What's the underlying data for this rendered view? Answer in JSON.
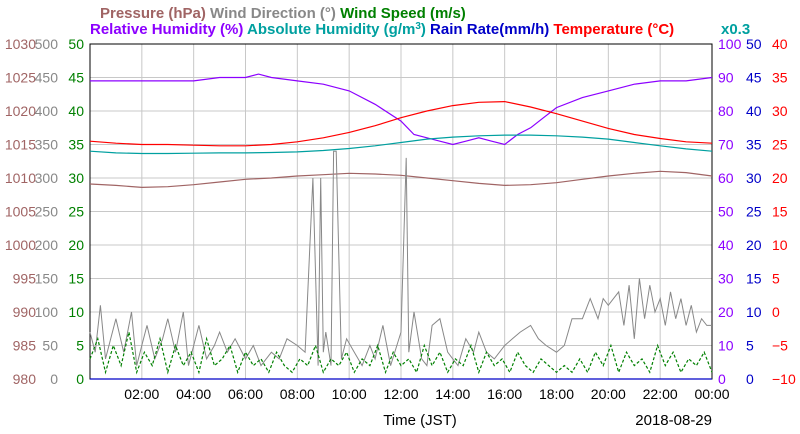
{
  "chart_data": {
    "type": "line",
    "xlabel": "Time (JST)",
    "date": "2018-08-29",
    "x_ticks": [
      "02:00",
      "04:00",
      "06:00",
      "08:00",
      "10:00",
      "12:00",
      "14:00",
      "16:00",
      "18:00",
      "20:00",
      "22:00",
      "00:00"
    ],
    "x_range_hours": [
      0,
      24
    ],
    "grid": true,
    "legend_row1": [
      {
        "label": "Pressure (hPa)",
        "color": "#a06464"
      },
      {
        "label": "Wind Direction (°)",
        "color": "#888888"
      },
      {
        "label": "Wind Speed (m/s)",
        "color": "#008000"
      }
    ],
    "legend_row2": [
      {
        "label": "Relative Humidity (%)",
        "color": "#8c00ff"
      },
      {
        "label": "Absolute Humidity (g/m",
        "sup": "3",
        "close": ")",
        "color": "#00a0a0"
      },
      {
        "label": "Rain Rate(mm/h)",
        "color": "#0000c8"
      },
      {
        "label": "Temperature (°C)",
        "color": "#ff0000"
      }
    ],
    "abs_humidity_scale_note": "x0.3",
    "axes": {
      "pressure": {
        "color": "#a06464",
        "range": [
          980,
          1030
        ],
        "ticks": [
          "1030",
          "1025",
          "1020",
          "1015",
          "1010",
          "1005",
          "1000",
          "995",
          "990",
          "985",
          "980"
        ]
      },
      "wind_dir": {
        "color": "#888888",
        "range": [
          0,
          500
        ],
        "ticks": [
          "500",
          "450",
          "400",
          "350",
          "300",
          "250",
          "200",
          "150",
          "100",
          "50",
          "0"
        ]
      },
      "wind_speed": {
        "color": "#008000",
        "range": [
          0,
          50
        ],
        "ticks": [
          "50",
          "45",
          "40",
          "35",
          "30",
          "25",
          "20",
          "15",
          "10",
          "5",
          "0"
        ]
      },
      "rel_hum": {
        "color": "#8c00ff",
        "range": [
          0,
          100
        ],
        "ticks": [
          "100",
          "90",
          "80",
          "70",
          "60",
          "50",
          "40",
          "30",
          "20",
          "10",
          "0"
        ]
      },
      "rain": {
        "color": "#0000c8",
        "range": [
          0,
          50
        ],
        "ticks": [
          "50",
          "45",
          "40",
          "35",
          "30",
          "25",
          "20",
          "15",
          "10",
          "5",
          "0"
        ]
      },
      "temp": {
        "color": "#ff0000",
        "range": [
          -10,
          40
        ],
        "ticks": [
          "40",
          "35",
          "30",
          "25",
          "20",
          "15",
          "10",
          "5",
          "0",
          "−5",
          "−10"
        ]
      }
    },
    "series": [
      {
        "name": "Pressure (hPa)",
        "axis": "pressure",
        "color": "#a06464",
        "x": [
          0,
          1,
          2,
          3,
          4,
          5,
          6,
          7,
          8,
          9,
          10,
          11,
          12,
          13,
          14,
          15,
          16,
          17,
          18,
          19,
          20,
          21,
          22,
          23,
          24
        ],
        "values": [
          1009.1,
          1008.9,
          1008.6,
          1008.7,
          1009.0,
          1009.4,
          1009.8,
          1010.0,
          1010.3,
          1010.5,
          1010.7,
          1010.6,
          1010.4,
          1010.0,
          1009.6,
          1009.2,
          1008.9,
          1009.0,
          1009.3,
          1009.8,
          1010.3,
          1010.7,
          1011.0,
          1010.8,
          1010.3
        ]
      },
      {
        "name": "Wind Direction (°)",
        "axis": "wind_dir",
        "color": "#888888",
        "style": "spiky",
        "x": [
          0,
          0.2,
          0.4,
          0.6,
          0.8,
          1,
          1.3,
          1.6,
          1.8,
          2,
          2.2,
          2.5,
          2.8,
          3,
          3.3,
          3.6,
          3.8,
          4,
          4.2,
          4.5,
          4.8,
          5,
          5.3,
          5.6,
          6,
          6.3,
          6.6,
          7,
          7.3,
          7.6,
          8,
          8.3,
          8.6,
          8.8,
          8.9,
          9,
          9.1,
          9.3,
          9.4,
          9.5,
          9.7,
          9.9,
          10.2,
          10.5,
          10.8,
          11,
          11.3,
          11.6,
          12,
          12.2,
          12.3,
          12.5,
          12.8,
          13,
          13.2,
          13.5,
          13.8,
          14,
          14.2,
          14.5,
          14.8,
          15,
          15.3,
          15.6,
          16,
          16.3,
          16.6,
          17,
          17.3,
          17.6,
          18,
          18.3,
          18.6,
          19,
          19.3,
          19.6,
          19.8,
          20,
          20.2,
          20.4,
          20.6,
          20.8,
          21,
          21.2,
          21.4,
          21.6,
          21.8,
          22,
          22.2,
          22.4,
          22.6,
          22.8,
          23,
          23.2,
          23.4,
          23.6,
          23.8,
          24
        ],
        "values": [
          70,
          40,
          110,
          30,
          60,
          90,
          40,
          100,
          20,
          50,
          80,
          30,
          60,
          90,
          40,
          100,
          20,
          50,
          80,
          30,
          50,
          70,
          40,
          60,
          30,
          50,
          20,
          40,
          30,
          60,
          50,
          40,
          300,
          20,
          300,
          40,
          70,
          20,
          340,
          340,
          30,
          60,
          40,
          20,
          50,
          30,
          80,
          20,
          70,
          330,
          40,
          100,
          30,
          20,
          80,
          90,
          40,
          30,
          20,
          60,
          40,
          70,
          40,
          30,
          50,
          60,
          70,
          80,
          60,
          50,
          40,
          50,
          90,
          90,
          120,
          90,
          120,
          110,
          120,
          130,
          80,
          140,
          60,
          150,
          90,
          140,
          100,
          120,
          80,
          130,
          90,
          120,
          80,
          110,
          70,
          90,
          80,
          80
        ]
      },
      {
        "name": "Wind Speed (m/s)",
        "axis": "wind_speed",
        "color": "#008000",
        "style": "dashed",
        "x": [
          0,
          0.3,
          0.6,
          0.9,
          1.2,
          1.5,
          1.8,
          2.1,
          2.4,
          2.7,
          3,
          3.3,
          3.6,
          3.9,
          4.2,
          4.5,
          4.8,
          5.1,
          5.4,
          5.7,
          6,
          6.3,
          6.6,
          6.9,
          7.2,
          7.5,
          7.8,
          8.1,
          8.4,
          8.7,
          9,
          9.3,
          9.6,
          9.9,
          10.2,
          10.5,
          10.8,
          11.1,
          11.4,
          11.7,
          12,
          12.3,
          12.6,
          12.9,
          13.2,
          13.5,
          13.8,
          14.1,
          14.4,
          14.7,
          15,
          15.3,
          15.6,
          15.9,
          16.2,
          16.5,
          16.8,
          17.1,
          17.4,
          17.7,
          18,
          18.3,
          18.6,
          18.9,
          19.2,
          19.5,
          19.8,
          20.1,
          20.4,
          20.7,
          21,
          21.3,
          21.6,
          21.9,
          22.2,
          22.5,
          22.8,
          23.1,
          23.4,
          23.7,
          24
        ],
        "values": [
          3,
          6,
          1,
          5,
          2,
          7,
          1,
          4,
          2,
          6,
          1,
          5,
          2,
          4,
          1,
          6,
          2,
          3,
          5,
          1,
          4,
          2,
          3,
          1,
          4,
          2,
          1,
          3,
          2,
          5,
          1,
          3,
          2,
          4,
          1,
          3,
          2,
          5,
          1,
          4,
          2,
          3,
          1,
          5,
          2,
          4,
          1,
          3,
          2,
          5,
          1,
          4,
          2,
          3,
          1,
          4,
          2,
          1,
          3,
          2,
          1,
          2,
          1,
          3,
          1,
          4,
          2,
          5,
          1,
          4,
          2,
          3,
          1,
          5,
          2,
          4,
          1,
          3,
          2,
          4,
          1
        ]
      },
      {
        "name": "Relative Humidity (%)",
        "axis": "rel_hum",
        "color": "#8c00ff",
        "x": [
          0,
          1,
          2,
          3,
          4,
          5,
          6,
          6.5,
          7,
          8,
          9,
          10,
          11,
          12,
          12.5,
          13,
          13.5,
          14,
          14.5,
          15,
          15.5,
          16,
          16.5,
          17,
          17.5,
          18,
          19,
          20,
          21,
          22,
          23,
          24
        ],
        "values": [
          89,
          89,
          89,
          89,
          89,
          90,
          90,
          91,
          90,
          89,
          88,
          86,
          82,
          77,
          73,
          72,
          71,
          70,
          71,
          72,
          71,
          70,
          73,
          75,
          78,
          81,
          84,
          86,
          88,
          89,
          89,
          90
        ]
      },
      {
        "name": "Absolute Humidity (g/m3)",
        "axis": "rel_hum",
        "color": "#00a0a0",
        "x": [
          0,
          1,
          2,
          3,
          4,
          5,
          6,
          7,
          8,
          9,
          10,
          11,
          12,
          13,
          14,
          15,
          16,
          17,
          18,
          19,
          20,
          21,
          22,
          23,
          24
        ],
        "values": [
          68,
          67.5,
          67.3,
          67.3,
          67.4,
          67.5,
          67.5,
          67.6,
          67.8,
          68.2,
          68.8,
          69.6,
          70.6,
          71.6,
          72.2,
          72.6,
          72.8,
          72.8,
          72.6,
          72.2,
          71.6,
          70.6,
          69.6,
          68.7,
          68
        ]
      },
      {
        "name": "Rain Rate(mm/h)",
        "axis": "rain",
        "color": "#0000c8",
        "x": [
          0,
          24
        ],
        "values": [
          0,
          0
        ]
      },
      {
        "name": "Temperature (°C)",
        "axis": "temp",
        "color": "#ff0000",
        "x": [
          0,
          1,
          2,
          3,
          4,
          5,
          6,
          7,
          8,
          9,
          10,
          11,
          12,
          13,
          14,
          15,
          16,
          17,
          18,
          19,
          20,
          21,
          22,
          23,
          24
        ],
        "values": [
          25.5,
          25.2,
          25.0,
          25.0,
          24.9,
          24.8,
          24.8,
          25.0,
          25.4,
          26.0,
          26.8,
          27.8,
          29.0,
          30.0,
          30.8,
          31.3,
          31.4,
          30.6,
          29.6,
          28.5,
          27.4,
          26.5,
          25.9,
          25.4,
          25.2
        ]
      }
    ]
  }
}
